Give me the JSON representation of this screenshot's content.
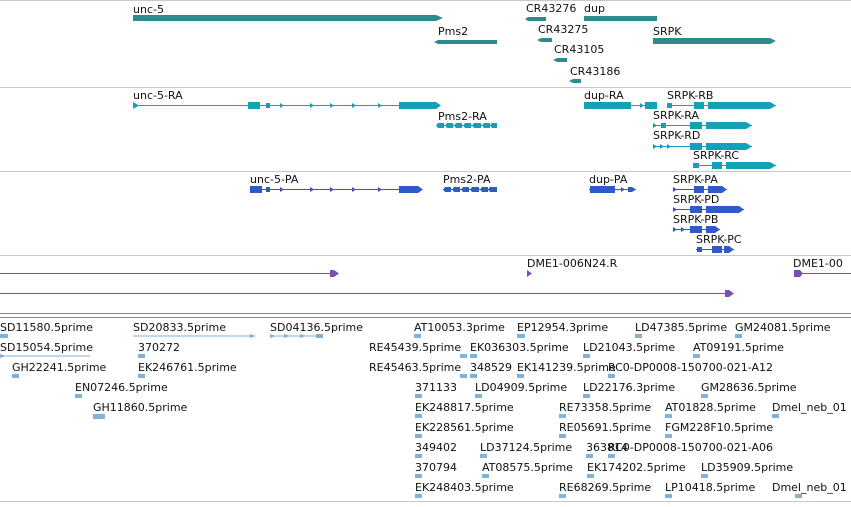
{
  "colors": {
    "gene": "#2e8b8b",
    "transcript": "#14a0b8",
    "protein": "#2f5bc8",
    "clone": "#7a4fb0",
    "est": "#7eb3dd",
    "divider": "#c8c8c8",
    "text": "#111111"
  },
  "genes": {
    "unc5": "unc-5",
    "pms2": "Pms2",
    "cr43276": "CR43276",
    "dup": "dup",
    "cr43275": "CR43275",
    "cr43105": "CR43105",
    "cr43186": "CR43186",
    "srpk": "SRPK"
  },
  "transcripts": {
    "unc5ra": "unc-5-RA",
    "pms2ra": "Pms2-RA",
    "dupra": "dup-RA",
    "srpkrb": "SRPK-RB",
    "srpkra": "SRPK-RA",
    "srpkrd": "SRPK-RD",
    "srpkrc": "SRPK-RC"
  },
  "proteins": {
    "unc5pa": "unc-5-PA",
    "pms2pa": "Pms2-PA",
    "duppa": "dup-PA",
    "srpkpa": "SRPK-PA",
    "srpkpd": "SRPK-PD",
    "srpkpb": "SRPK-PB",
    "srpkpc": "SRPK-PC"
  },
  "clones": {
    "c1": "DME1-006N24.R",
    "c2": "DME1-00"
  },
  "ests": {
    "e01": "SD11580.5prime",
    "e02": "SD20833.5prime",
    "e03": "SD04136.5prime",
    "e04": "AT10053.3prime",
    "e05": "EP12954.3prime",
    "e06": "LD47385.5prime",
    "e07": "GM24081.5prime",
    "e08": "SD15054.5prime",
    "e09": "370272",
    "e10": "RE45439.5prime",
    "e11": "EK036303.5prime",
    "e12": "LD21043.5prime",
    "e13": "AT09191.5prime",
    "e14": "GH22241.5prime",
    "e15": "EK246761.5prime",
    "e16": "RE45463.5prime",
    "e17": "348529",
    "e18": "EK141239.5prime",
    "e19": "RC0-DP0008-150700-021-A12",
    "e20": "EN07246.5prime",
    "e21": "371133",
    "e22": "LD04909.5prime",
    "e23": "LD22176.3prime",
    "e24": "GM28636.5prime",
    "e25": "GH11860.5prime",
    "e26": "EK248817.5prime",
    "e27": "RE73358.5prime",
    "e28": "AT01828.5prime",
    "e29": "Dmel_neb_01",
    "e30": "EK228561.5prime",
    "e31": "RE05691.5prime",
    "e32": "FGM228F10.5prime",
    "e33": "349402",
    "e34": "LD37124.5prime",
    "e35": "363814",
    "e36": "RC0-DP0008-150700-021-A06",
    "e37": "370794",
    "e38": "AT08575.5prime",
    "e39": "EK174202.5prime",
    "e40": "LD35909.5prime",
    "e41": "EK248403.5prime",
    "e42": "RE68269.5prime",
    "e43": "LP10418.5prime",
    "e44": "Dmel_neb_01"
  }
}
